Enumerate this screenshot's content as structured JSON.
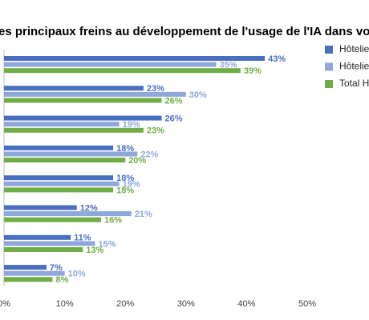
{
  "chart_data": {
    "type": "hbar",
    "title": "es principaux freins au développement de l'usage de l'IA dans votre éta",
    "categories": [
      null,
      null,
      null,
      null,
      null,
      null,
      null,
      null
    ],
    "series": [
      {
        "name": "Hôtelie",
        "color": "#4a6fc1",
        "values": [
          43,
          23,
          26,
          18,
          18,
          12,
          11,
          7
        ],
        "value_labels": [
          "43%",
          "23%",
          "26%",
          "18%",
          "18%",
          "12%",
          "11%",
          "7%"
        ]
      },
      {
        "name": "Hôtelie",
        "color": "#8fa8dc",
        "values": [
          35,
          30,
          19,
          22,
          19,
          21,
          15,
          10
        ],
        "value_labels": [
          "35%",
          "30%",
          "19%",
          "22%",
          "19%",
          "21%",
          "15%",
          "10%"
        ]
      },
      {
        "name": "Total Ho",
        "color": "#70ad47",
        "values": [
          39,
          26,
          23,
          20,
          18,
          16,
          13,
          8
        ],
        "value_labels": [
          "39%",
          "26%",
          "23%",
          "20%",
          "18%",
          "16%",
          "13%",
          "8%"
        ]
      }
    ],
    "xlim": [
      0,
      50
    ],
    "xticks": [
      {
        "value": 0,
        "label": "0%"
      },
      {
        "value": 10,
        "label": "10%"
      },
      {
        "value": 20,
        "label": "20%"
      },
      {
        "value": 30,
        "label": "30%"
      },
      {
        "value": 40,
        "label": "40%"
      },
      {
        "value": 50,
        "label": "50%"
      }
    ]
  }
}
